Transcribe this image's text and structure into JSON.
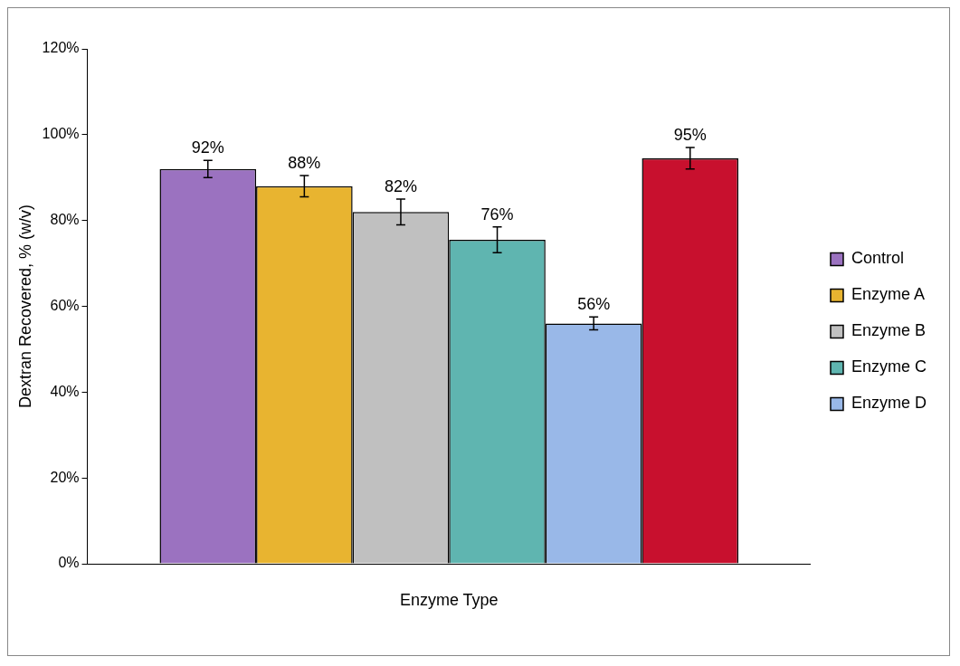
{
  "chart_data": {
    "type": "bar",
    "categories": [
      null
    ],
    "xlabel": "Enzyme Type",
    "ylabel": "Dextran Recovered, % (w/v)",
    "series": [
      {
        "name": "Control",
        "color": "#9b72c0",
        "values": [
          92
        ],
        "errors": [
          2
        ],
        "value_labels": [
          "92%"
        ]
      },
      {
        "name": "Enzyme A",
        "color": "#e8b430",
        "values": [
          88
        ],
        "errors": [
          2.5
        ],
        "value_labels": [
          "88%"
        ]
      },
      {
        "name": "Enzyme B",
        "color": "#c0c0c0",
        "values": [
          82
        ],
        "errors": [
          3
        ],
        "value_labels": [
          "82%"
        ]
      },
      {
        "name": "Enzyme C",
        "color": "#5fb5b0",
        "values": [
          75.5
        ],
        "errors": [
          3
        ],
        "value_labels": [
          "76%"
        ]
      },
      {
        "name": "Enzyme D",
        "color": "#99b8e8",
        "values": [
          56
        ],
        "errors": [
          1.5
        ],
        "value_labels": [
          "56%"
        ]
      },
      {
        "color": "#c8102e",
        "values": [
          94.5
        ],
        "errors": [
          2.5
        ],
        "value_labels": [
          "95%"
        ]
      }
    ],
    "ylim": [
      0,
      120
    ],
    "yticks": [
      {
        "value": 0,
        "label": "0%"
      },
      {
        "value": 20,
        "label": "20%"
      },
      {
        "value": 40,
        "label": "40%"
      },
      {
        "value": 60,
        "label": "60%"
      },
      {
        "value": 80,
        "label": "80%"
      },
      {
        "value": 100,
        "label": "100%"
      },
      {
        "value": 120,
        "label": "120%"
      }
    ],
    "grid": false,
    "legend": "right"
  }
}
